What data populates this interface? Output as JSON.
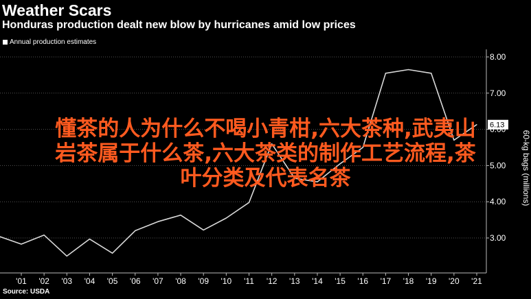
{
  "header": {
    "title": "Weather Scars",
    "subtitle": "Honduras production dealt new blow by hurricanes amid low prices"
  },
  "legend": {
    "label": "Annual production estimates"
  },
  "source": "Source: USDA",
  "overlay": {
    "line1": "懂茶的人为什么不喝小青柑,六大茶种,武夷山",
    "line2": "岩茶属于什么茶,六大茶类的制作工艺流程,茶",
    "line3": "叶分类及代表名茶"
  },
  "colors": {
    "background": "#000000",
    "line": "#d9d9d9",
    "grid": "#555555",
    "overlay_text": "#ff5a1f",
    "last_value_box": "#ffffff"
  },
  "chart_data": {
    "type": "line",
    "title": "Weather Scars",
    "subtitle": "Honduras production dealt new blow by hurricanes amid low prices",
    "ylabel": "60-kg bags (millions)",
    "y_axis_position": "right",
    "ylim": [
      2.5,
      8.2
    ],
    "yticks": [
      3.0,
      4.0,
      5.0,
      6.0,
      7.0,
      8.0
    ],
    "ytick_labels": [
      "3.00",
      "4.00",
      "5.00",
      "6.00",
      "7.00",
      "8.00"
    ],
    "xlim": [
      2000,
      2021.5
    ],
    "xticks": [
      2001,
      2002,
      2003,
      2004,
      2005,
      2006,
      2007,
      2008,
      2009,
      2010,
      2011,
      2012,
      2013,
      2014,
      2015,
      2016,
      2017,
      2018,
      2019,
      2020,
      2021
    ],
    "xtick_labels": [
      "'01",
      "'02",
      "'03",
      "'04",
      "'05",
      "'06",
      "'07",
      "'08",
      "'09",
      "'10",
      "'11",
      "'12",
      "'13",
      "'14",
      "'15",
      "'16",
      "'17",
      "'18",
      "'19",
      "'20",
      "'21"
    ],
    "grid": "horizontal",
    "series": [
      {
        "name": "Annual production estimates",
        "x": [
          2000,
          2001,
          2002,
          2003,
          2004,
          2005,
          2006,
          2007,
          2008,
          2009,
          2010,
          2011,
          2012,
          2013,
          2014,
          2015,
          2016,
          2017,
          2018,
          2019,
          2020,
          2021
        ],
        "y": [
          3.05,
          2.83,
          3.08,
          2.5,
          2.97,
          2.58,
          3.2,
          3.45,
          3.63,
          3.22,
          3.55,
          3.98,
          5.6,
          4.65,
          4.55,
          5.05,
          5.5,
          7.55,
          7.65,
          7.55,
          5.7,
          6.13
        ]
      }
    ],
    "last_value_label": "6.13"
  }
}
